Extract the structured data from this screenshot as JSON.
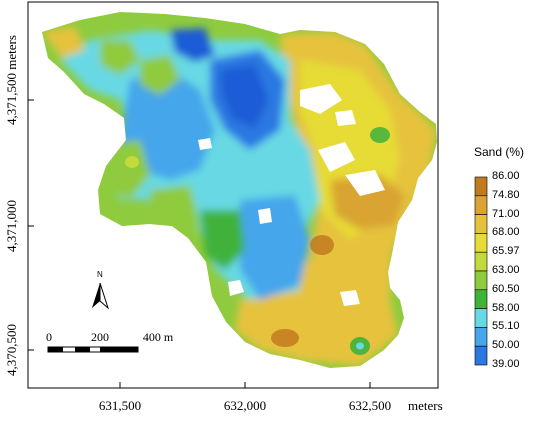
{
  "map": {
    "y_ticks": [
      "4,371,500 meters",
      "4,371,000",
      "4,370,500"
    ],
    "x_ticks": [
      "631,500",
      "632,000",
      "632,500"
    ],
    "x_unit": "meters"
  },
  "legend": {
    "title": "Sand (%)",
    "classes": [
      {
        "label": "86.00",
        "color": "#c27a1e"
      },
      {
        "label": "74.80",
        "color": "#d9a433"
      },
      {
        "label": "71.00",
        "color": "#e6c23c"
      },
      {
        "label": "68.00",
        "color": "#e6dc36"
      },
      {
        "label": "65.97",
        "color": "#c4d93b"
      },
      {
        "label": "63.00",
        "color": "#8fcb3e"
      },
      {
        "label": "60.50",
        "color": "#3fb23a"
      },
      {
        "label": "58.00",
        "color": "#67d9e4"
      },
      {
        "label": "55.10",
        "color": "#45a6eb"
      },
      {
        "label": "50.00",
        "color": "#2c78e2"
      },
      {
        "label": "39.00",
        "color": "#1f5bd6"
      }
    ]
  },
  "north_arrow": {
    "label": "N"
  },
  "scale_bar": {
    "labels": [
      "0",
      "200",
      "400 m"
    ]
  }
}
